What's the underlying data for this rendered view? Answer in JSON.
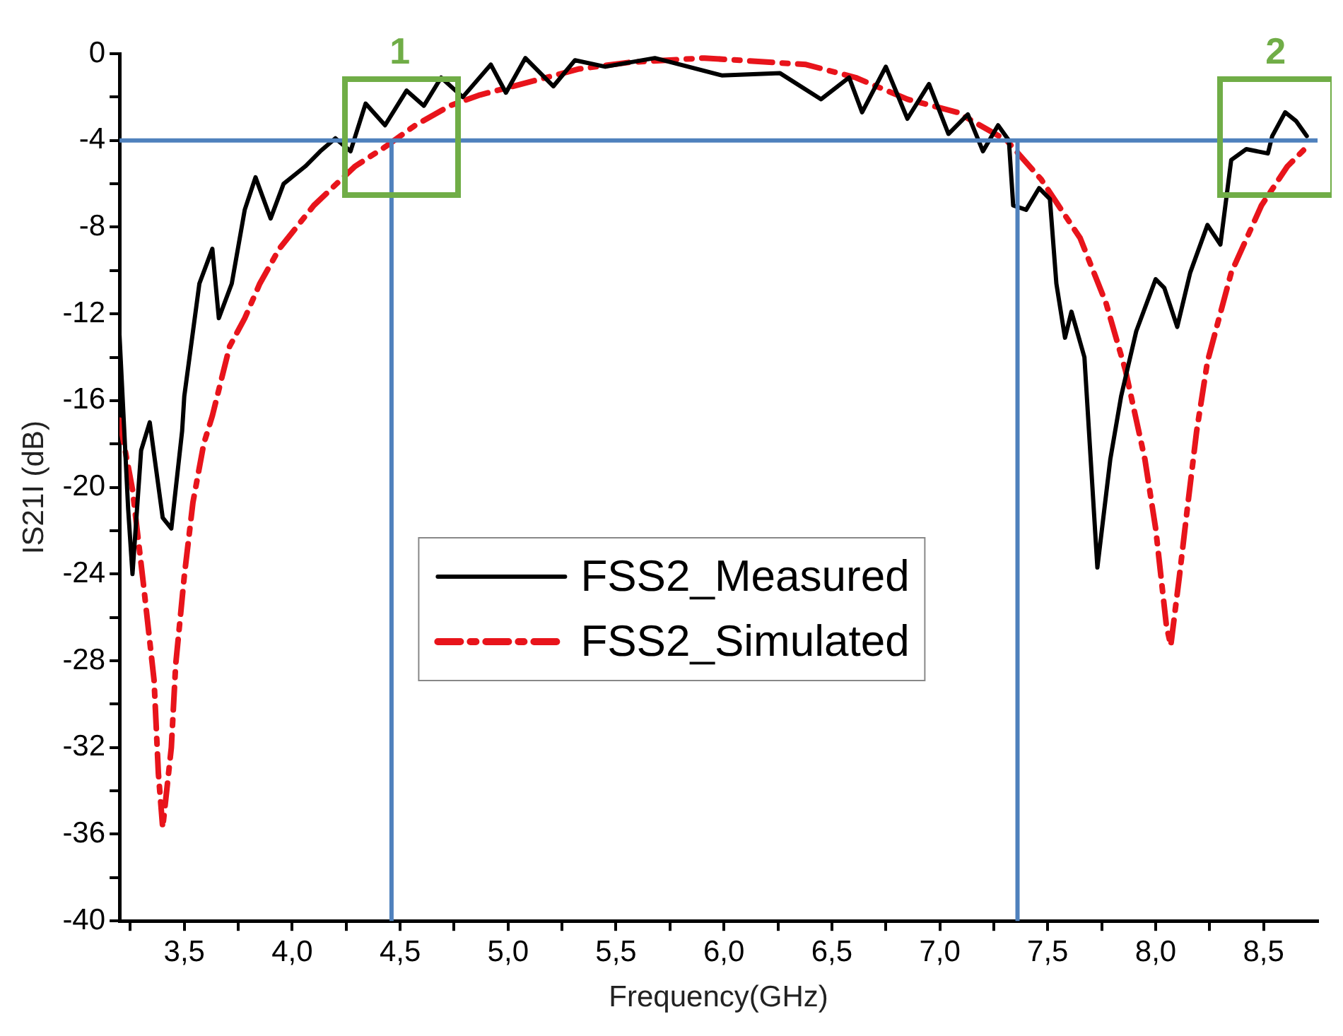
{
  "chart_data": {
    "type": "line",
    "xlabel": "Frequency(GHz)",
    "ylabel": "IS21I (dB)",
    "xlim": [
      3.2,
      8.75
    ],
    "xticks": [
      {
        "value": 3.25,
        "label": null
      },
      {
        "value": 3.5,
        "label": "3,5"
      },
      {
        "value": 3.75,
        "label": null
      },
      {
        "value": 4.0,
        "label": "4,0"
      },
      {
        "value": 4.25,
        "label": null
      },
      {
        "value": 4.5,
        "label": "4,5"
      },
      {
        "value": 4.75,
        "label": null
      },
      {
        "value": 5.0,
        "label": "5,0"
      },
      {
        "value": 5.25,
        "label": null
      },
      {
        "value": 5.5,
        "label": "5,5"
      },
      {
        "value": 5.75,
        "label": null
      },
      {
        "value": 6.0,
        "label": "6,0"
      },
      {
        "value": 6.25,
        "label": null
      },
      {
        "value": 6.5,
        "label": "6,5"
      },
      {
        "value": 6.75,
        "label": null
      },
      {
        "value": 7.0,
        "label": "7,0"
      },
      {
        "value": 7.25,
        "label": null
      },
      {
        "value": 7.5,
        "label": "7,5"
      },
      {
        "value": 7.75,
        "label": null
      },
      {
        "value": 8.0,
        "label": "8,0"
      },
      {
        "value": 8.25,
        "label": null
      },
      {
        "value": 8.5,
        "label": "8,5"
      }
    ],
    "ylim": [
      -40,
      0
    ],
    "yticks": [
      -40,
      {
        "value": -38,
        "label": null
      },
      -36,
      {
        "value": -34,
        "label": null
      },
      -32,
      {
        "value": -30,
        "label": null
      },
      -28,
      {
        "value": -26,
        "label": null
      },
      -24,
      {
        "value": -22,
        "label": null
      },
      -20,
      {
        "value": -18,
        "label": null
      },
      -16,
      {
        "value": -14,
        "label": null
      },
      -12,
      {
        "value": -10,
        "label": null
      },
      -8,
      {
        "value": -6,
        "label": null
      },
      -4,
      {
        "value": -2,
        "label": null
      },
      0
    ],
    "grid": false,
    "legend": "center",
    "marker": "none",
    "series": [
      {
        "name": "FSS2_Measured",
        "color": "#000000",
        "line_style": "solid",
        "x": [
          3.2,
          3.24,
          3.26,
          3.3,
          3.34,
          3.4,
          3.44,
          3.49,
          3.5,
          3.57,
          3.63,
          3.66,
          3.72,
          3.78,
          3.83,
          3.9,
          3.96,
          4.06,
          4.13,
          4.2,
          4.27,
          4.34,
          4.43,
          4.53,
          4.61,
          4.69,
          4.79,
          4.92,
          4.99,
          5.08,
          5.21,
          5.31,
          5.45,
          5.68,
          5.99,
          6.26,
          6.45,
          6.58,
          6.64,
          6.75,
          6.85,
          6.95,
          7.04,
          7.13,
          7.2,
          7.27,
          7.32,
          7.34,
          7.4,
          7.46,
          7.51,
          7.54,
          7.58,
          7.61,
          7.67,
          7.73,
          7.79,
          7.84,
          7.91,
          8.0,
          8.04,
          8.1,
          8.16,
          8.24,
          8.3,
          8.35,
          8.42,
          8.52,
          8.54,
          8.6,
          8.65,
          8.7
        ],
        "values": [
          -13,
          -21,
          -24,
          -18.3,
          -17,
          -21.4,
          -21.9,
          -17.4,
          -15.8,
          -10.6,
          -9,
          -12.2,
          -10.6,
          -7.2,
          -5.7,
          -7.6,
          -6,
          -5.2,
          -4.5,
          -3.9,
          -4.5,
          -2.3,
          -3.3,
          -1.7,
          -2.4,
          -1.1,
          -2,
          -0.5,
          -1.8,
          -0.2,
          -1.5,
          -0.3,
          -0.6,
          -0.2,
          -1,
          -0.9,
          -2.1,
          -1.1,
          -2.7,
          -0.6,
          -3,
          -1.4,
          -3.7,
          -2.8,
          -4.5,
          -3.3,
          -4,
          -7,
          -7.2,
          -6.2,
          -6.7,
          -10.6,
          -13.1,
          -11.9,
          -14,
          -23.7,
          -18.7,
          -15.8,
          -12.8,
          -10.4,
          -10.8,
          -12.6,
          -10.1,
          -7.9,
          -8.8,
          -4.9,
          -4.4,
          -4.6,
          -3.8,
          -2.7,
          -3.1,
          -3.8
        ]
      },
      {
        "name": "FSS2_Simulated",
        "color": "#e8141b",
        "line_style": "dashed",
        "x": [
          3.2,
          3.26,
          3.31,
          3.36,
          3.38,
          3.4,
          3.44,
          3.46,
          3.5,
          3.54,
          3.59,
          3.63,
          3.71,
          3.78,
          3.85,
          3.94,
          4.1,
          4.29,
          4.43,
          4.57,
          4.73,
          4.87,
          5.1,
          5.33,
          5.56,
          5.91,
          6.38,
          6.61,
          6.85,
          7.08,
          7.31,
          7.47,
          7.65,
          7.77,
          7.86,
          7.95,
          8.0,
          8.05,
          8.07,
          8.11,
          8.15,
          8.19,
          8.24,
          8.35,
          8.49,
          8.61,
          8.7
        ],
        "values": [
          -16.9,
          -20.1,
          -24.4,
          -28.9,
          -33.2,
          -35.7,
          -32,
          -28.2,
          -24.1,
          -20.7,
          -18,
          -16.7,
          -13.5,
          -12.2,
          -10.6,
          -9,
          -7,
          -5.2,
          -4.3,
          -3.3,
          -2.4,
          -1.9,
          -1.3,
          -0.7,
          -0.4,
          -0.2,
          -0.5,
          -1.1,
          -2.1,
          -2.7,
          -4,
          -5.8,
          -8.5,
          -11.5,
          -14.6,
          -18.7,
          -21.9,
          -26.4,
          -27.3,
          -24.1,
          -20.7,
          -17.4,
          -14.2,
          -10.1,
          -7,
          -5.2,
          -4.3
        ]
      }
    ],
    "ref_lines": [
      {
        "axis": "y",
        "value": -4,
        "color": "#4f81bd"
      },
      {
        "axis": "x",
        "value": 4.46,
        "color": "#4f81bd"
      },
      {
        "axis": "x",
        "value": 7.36,
        "color": "#4f81bd"
      }
    ],
    "annotations": [
      "1",
      "2"
    ]
  }
}
